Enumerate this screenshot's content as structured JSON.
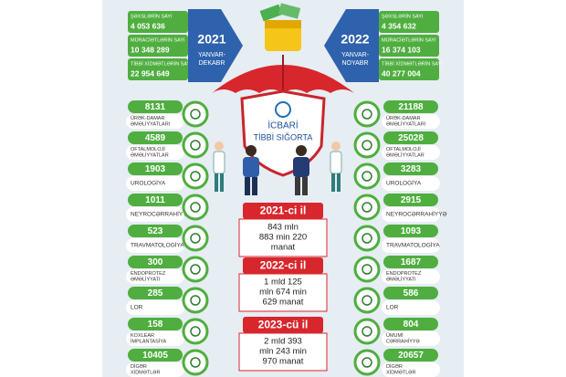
{
  "left_period": {
    "year": "2021",
    "period": [
      "YANVAR-",
      "DEKABR"
    ],
    "stats": [
      {
        "label": "ŞƏXSLƏRİN SAYI",
        "value": "4 053 636"
      },
      {
        "label": "MÜRACİƏTLƏRİN SAYI",
        "value": "10 348 289"
      },
      {
        "label": "TİBBİ XİDMƏTLƏRİN SAYI",
        "value": "22 954 649"
      }
    ]
  },
  "right_period": {
    "year": "2022",
    "period": [
      "YANVAR-",
      "NOYABR"
    ],
    "stats": [
      {
        "label": "ŞƏXSLƏRİN SAYI",
        "value": "4 354 632"
      },
      {
        "label": "MÜRACİƏTLƏRİN SAYI",
        "value": "16 374 103"
      },
      {
        "label": "TİBBİ XİDMƏTLƏRİN SAYI",
        "value": "40 277 004"
      }
    ]
  },
  "logo": [
    "İCBARİ",
    "TİBBİ SIĞORTA"
  ],
  "left_services": [
    {
      "value": "8131",
      "label": [
        "ÜRƏK-DAMAR",
        "ƏMƏLİYYATLARI"
      ]
    },
    {
      "value": "4589",
      "label": [
        "OFTALMOLOJİ",
        "ƏMƏLİYYATLAR"
      ]
    },
    {
      "value": "1903",
      "label": [
        "UROLOGİYA"
      ]
    },
    {
      "value": "1011",
      "label": [
        "NEYROCƏRRAHİYYƏ"
      ]
    },
    {
      "value": "523",
      "label": [
        "TRAVMATOLOGİYA"
      ]
    },
    {
      "value": "300",
      "label": [
        "ENDOPROTEZ",
        "ƏMƏLİYYATI"
      ]
    },
    {
      "value": "285",
      "label": [
        "LOR"
      ]
    },
    {
      "value": "158",
      "label": [
        "KOXLEAR",
        "İMPLANTASİYA"
      ]
    },
    {
      "value": "10405",
      "label": [
        "DİGƏR",
        "XİDMƏTLƏR"
      ]
    }
  ],
  "right_services": [
    {
      "value": "21188",
      "label": [
        "ÜRƏK-DAMAR",
        "ƏMƏLİYYATLARI"
      ]
    },
    {
      "value": "25028",
      "label": [
        "OFTALMOLOJİ",
        "ƏMƏLİYYATLAR"
      ]
    },
    {
      "value": "3283",
      "label": [
        "UROLOGİYA"
      ]
    },
    {
      "value": "2915",
      "label": [
        "NEYROCƏRRAHİYYƏ"
      ]
    },
    {
      "value": "1093",
      "label": [
        "TRAVMATOLOGİYA"
      ]
    },
    {
      "value": "1687",
      "label": [
        "ENDOPROTEZ",
        "ƏMƏLİYYATI"
      ]
    },
    {
      "value": "586",
      "label": [
        "LOR"
      ]
    },
    {
      "value": "804",
      "label": [
        "ÜMUMİ",
        "CƏRRAHİYYƏ"
      ]
    },
    {
      "value": "20657",
      "label": [
        "DİGƏR",
        "XİDMƏTLƏR"
      ]
    }
  ],
  "budgets": [
    {
      "year": "2021-ci il",
      "amount": [
        "843 mln",
        "883 min 220",
        "manat"
      ]
    },
    {
      "year": "2022-ci il",
      "amount": [
        "1 mld 125",
        "mln 674 min",
        "629 manat"
      ]
    },
    {
      "year": "2023-cü il",
      "amount": [
        "2 mld 393",
        "mln 243 min",
        "970 manat"
      ]
    }
  ]
}
